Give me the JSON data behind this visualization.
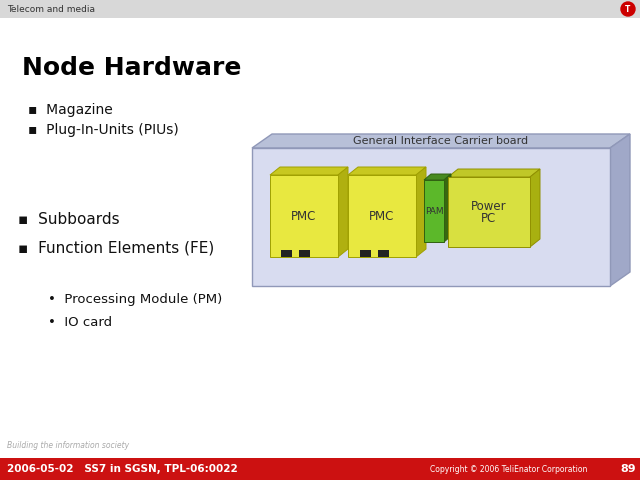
{
  "title": "Node Hardware",
  "header_text": "Telecom and media",
  "header_bg": "#d8d8d8",
  "header_icon_color": "#cc0000",
  "footer_bg": "#cc1111",
  "footer_text": "2006-05-02   SS7 in SGSN, TPL-06:0022",
  "footer_right": "Copyright © 2006 TeliEnator Corporation",
  "footer_page": "89",
  "footer_small_text": "Building the information society",
  "bullet1": "Magazine",
  "bullet2": "Plug-In-Units (PIUs)",
  "bullet3": "Subboards",
  "bullet4": "Function Elements (FE)",
  "sub_bullet1": "Processing Module (PM)",
  "sub_bullet2": "IO card",
  "diagram_label": "General Interface Carrier board",
  "carrier_bg": "#d8dcf0",
  "carrier_border": "#9098b8",
  "carrier_top": "#b8c0d8",
  "carrier_right": "#a0a8c8",
  "pmc_color": "#e8e840",
  "pmc_top": "#c8c820",
  "pmc_right": "#b0b010",
  "pmc_border": "#a0a000",
  "pam_color": "#5cb82a",
  "pam_top": "#488a20",
  "pam_right": "#386810",
  "pam_border": "#306010",
  "power_color": "#d8e040",
  "power_top": "#c0c828",
  "power_right": "#a8b010",
  "power_border": "#909000",
  "black_rect_color": "#222222",
  "bg_color": "#ffffff",
  "title_fontsize": 18,
  "bullet_fontsize": 10,
  "sub_bullet_fontsize": 9.5
}
